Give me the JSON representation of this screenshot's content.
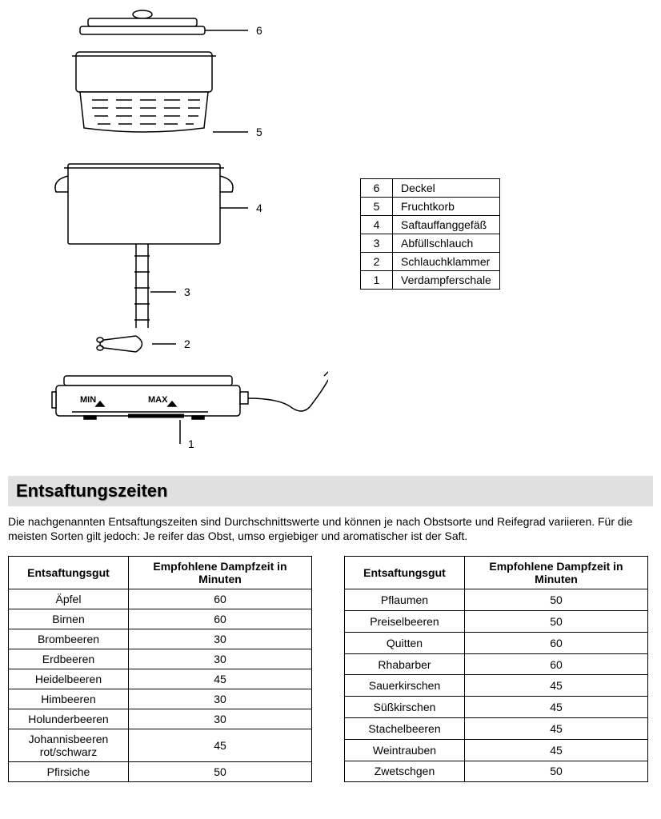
{
  "diagram": {
    "labels": {
      "l1": "1",
      "l2": "2",
      "l3": "3",
      "l4": "4",
      "l5": "5",
      "l6": "6"
    },
    "minLabel": "MIN",
    "maxLabel": "MAX",
    "stroke": "#000000",
    "strokeWidth": 1.5,
    "font": "Arial"
  },
  "legend": {
    "rows": [
      {
        "num": "6",
        "label": "Deckel"
      },
      {
        "num": "5",
        "label": "Fruchtkorb"
      },
      {
        "num": "4",
        "label": "Saftauffanggefäß"
      },
      {
        "num": "3",
        "label": "Abfüllschlauch"
      },
      {
        "num": "2",
        "label": "Schlauchklammer"
      },
      {
        "num": "1",
        "label": "Verdampferschale"
      }
    ]
  },
  "section": {
    "title": "Entsaftungszeiten",
    "headerBg": "#e0e0e0",
    "intro": "Die nachgenannten Entsaftungszeiten sind Durchschnittswerte und können je nach Obstsorte und Reifegrad variieren. Für die meisten Sorten gilt jedoch: Je reifer das Obst, umso ergiebiger und aromatischer ist der Saft."
  },
  "timesTable": {
    "headers": {
      "item": "Entsaftungsgut",
      "time": "Empfohlene Dampfzeit in Minuten"
    },
    "left": [
      {
        "item": "Äpfel",
        "time": "60"
      },
      {
        "item": "Birnen",
        "time": "60"
      },
      {
        "item": "Brombeeren",
        "time": "30"
      },
      {
        "item": "Erdbeeren",
        "time": "30"
      },
      {
        "item": "Heidelbeeren",
        "time": "45"
      },
      {
        "item": "Himbeeren",
        "time": "30"
      },
      {
        "item": "Holunderbeeren",
        "time": "30"
      },
      {
        "item": "Johannisbeeren rot/schwarz",
        "time": "45"
      },
      {
        "item": "Pfirsiche",
        "time": "50"
      }
    ],
    "right": [
      {
        "item": "Pflaumen",
        "time": "50"
      },
      {
        "item": "Preiselbeeren",
        "time": "50"
      },
      {
        "item": "Quitten",
        "time": "60"
      },
      {
        "item": "Rhabarber",
        "time": "60"
      },
      {
        "item": "Sauerkirschen",
        "time": "45"
      },
      {
        "item": "Süßkirschen",
        "time": "45"
      },
      {
        "item": "Stachelbeeren",
        "time": "45"
      },
      {
        "item": "Weintrauben",
        "time": "45"
      },
      {
        "item": "Zwetschgen",
        "time": "50"
      }
    ]
  }
}
